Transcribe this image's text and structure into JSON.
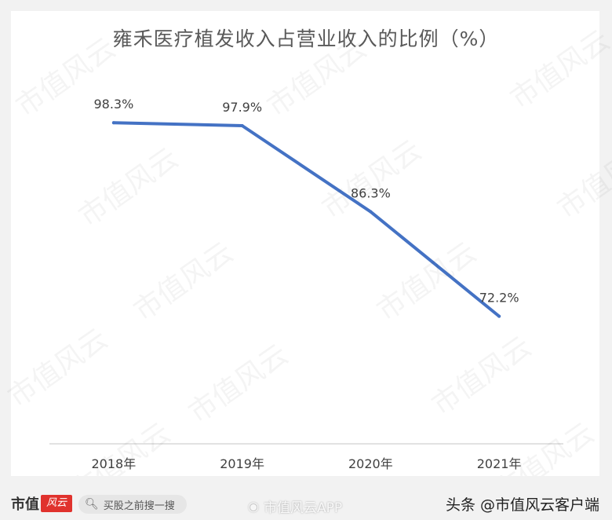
{
  "watermark_text": "市值风云",
  "footer": {
    "logo_text": "市值",
    "logo_mark": "风云",
    "search_placeholder": "买股之前搜一搜",
    "search_icon": "search-icon",
    "weibo_icon": "weibo-icon",
    "weibo_text": "市值风云APP",
    "toutiao_text": "头条 @市值风云客户端"
  },
  "colors": {
    "line": "#4472c4",
    "axis": "#d9d9d9",
    "text": "#404040"
  },
  "chart_data": {
    "type": "line",
    "title": "雍禾医疗植发收入占营业收入的比例（%）",
    "categories": [
      "2018年",
      "2019年",
      "2020年",
      "2021年"
    ],
    "series": [
      {
        "values": [
          98.3,
          97.9,
          86.3,
          72.2
        ]
      }
    ],
    "data_labels": [
      "98.3%",
      "97.9%",
      "86.3%",
      "72.2%"
    ],
    "ylim": [
      55,
      105
    ],
    "grid": false,
    "legend": "none"
  }
}
